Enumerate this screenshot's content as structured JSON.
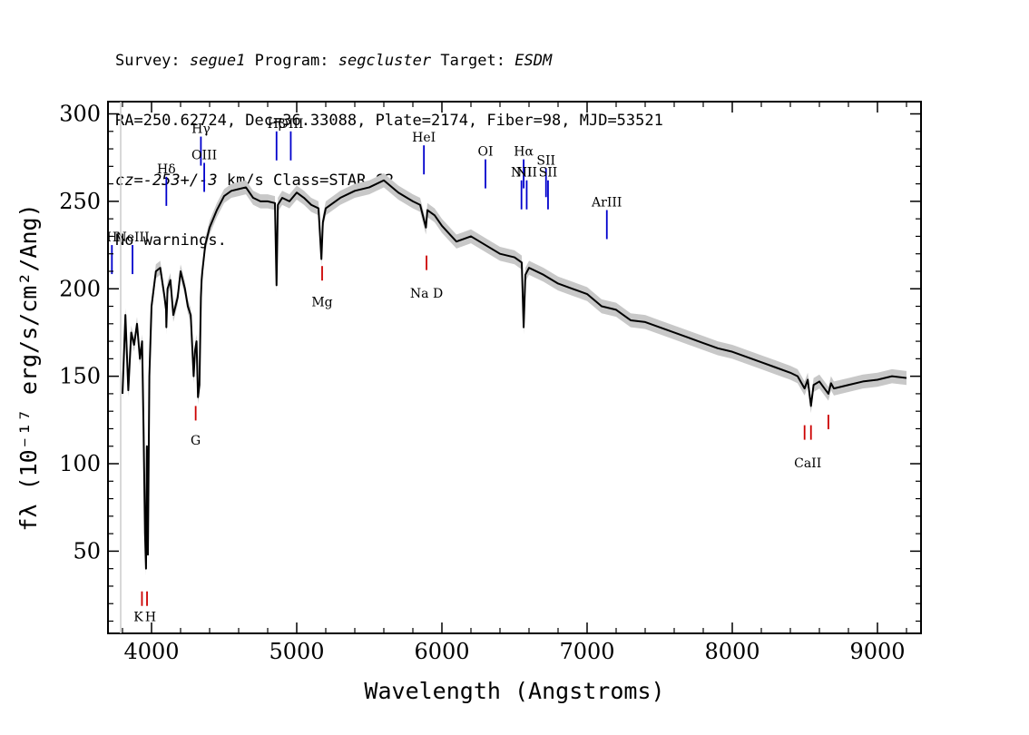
{
  "header": {
    "line1": {
      "survey_label": "Survey:",
      "survey": "segue1",
      "program_label": "Program:",
      "program": "segcluster",
      "target_label": "Target:",
      "target": "ESDM"
    },
    "line2": "RA=250.62724, Dec=36.33088, Plate=2174, Fiber=98, MJD=53521",
    "line3": {
      "cz": "cz=-253+/-3",
      "rest": " km/s Class=STAR G2"
    },
    "line4": "No warnings."
  },
  "chart_data": {
    "type": "line",
    "xlabel": "Wavelength (Angstroms)",
    "ylabel": "fλ (10⁻¹⁷ erg/s/cm²/Ang)",
    "xlim": [
      3700,
      9300
    ],
    "ylim": [
      3,
      307
    ],
    "xticks": [
      4000,
      5000,
      6000,
      7000,
      8000,
      9000
    ],
    "yticks": [
      50,
      100,
      150,
      200,
      250,
      300
    ],
    "series": [
      {
        "color": "#000000",
        "x": [
          3800,
          3820,
          3840,
          3860,
          3880,
          3900,
          3920,
          3935,
          3945,
          3955,
          3962,
          3968,
          3975,
          3985,
          4000,
          4030,
          4060,
          4090,
          4100,
          4102,
          4110,
          4130,
          4150,
          4180,
          4200,
          4230,
          4250,
          4270,
          4290,
          4300,
          4310,
          4320,
          4330,
          4340,
          4345,
          4350,
          4370,
          4400,
          4450,
          4500,
          4550,
          4600,
          4650,
          4700,
          4750,
          4800,
          4850,
          4861,
          4870,
          4900,
          4950,
          5000,
          5050,
          5100,
          5150,
          5170,
          5180,
          5200,
          5300,
          5400,
          5500,
          5600,
          5700,
          5800,
          5850,
          5890,
          5900,
          5950,
          6000,
          6100,
          6200,
          6300,
          6400,
          6500,
          6550,
          6563,
          6575,
          6600,
          6700,
          6800,
          6900,
          7000,
          7100,
          7200,
          7300,
          7400,
          7500,
          7600,
          7700,
          7800,
          7900,
          8000,
          8100,
          8200,
          8300,
          8400,
          8450,
          8498,
          8520,
          8542,
          8560,
          8600,
          8662,
          8680,
          8700,
          8800,
          8900,
          9000,
          9100,
          9200
        ],
        "values": [
          140,
          185,
          142,
          175,
          168,
          180,
          160,
          170,
          120,
          60,
          40,
          110,
          48,
          150,
          190,
          210,
          212,
          195,
          188,
          178,
          200,
          205,
          185,
          195,
          210,
          200,
          190,
          185,
          150,
          165,
          170,
          138,
          145,
          195,
          205,
          210,
          225,
          235,
          245,
          253,
          256,
          257,
          258,
          252,
          250,
          250,
          249,
          202,
          248,
          252,
          250,
          255,
          252,
          248,
          246,
          217,
          238,
          246,
          252,
          256,
          258,
          262,
          255,
          250,
          248,
          235,
          245,
          242,
          236,
          227,
          230,
          225,
          220,
          218,
          215,
          178,
          208,
          212,
          208,
          203,
          200,
          197,
          190,
          188,
          182,
          181,
          178,
          175,
          172,
          169,
          166,
          164,
          161,
          158,
          155,
          152,
          150,
          143,
          148,
          133,
          145,
          147,
          140,
          146,
          143,
          145,
          147,
          148,
          150,
          149
        ],
        "band": 4
      }
    ],
    "line_labels": {
      "emission": [
        {
          "label": "H",
          "x": 3727,
          "y_top": 225
        },
        {
          "label": "NeIII",
          "x": 3869,
          "y_top": 225
        },
        {
          "label": "Hδ",
          "x": 4102,
          "y_top": 264
        },
        {
          "label": "Hγ",
          "x": 4340,
          "y_top": 287
        },
        {
          "label": "OIII",
          "x": 4363,
          "y_top": 272
        },
        {
          "label": "Hβ",
          "x": 4861,
          "y_top": 290
        },
        {
          "label": "OIII",
          "x": 4959,
          "y_top": 290
        },
        {
          "label": "HeI",
          "x": 5876,
          "y_top": 282
        },
        {
          "label": "OI",
          "x": 6300,
          "y_top": 274
        },
        {
          "label": "NII",
          "x": 6548,
          "y_top": 262
        },
        {
          "label": "Hα",
          "x": 6563,
          "y_top": 274
        },
        {
          "label": "NII",
          "x": 6584,
          "y_top": 262
        },
        {
          "label": "SII",
          "x": 6717,
          "y_top": 269
        },
        {
          "label": "SII",
          "x": 6731,
          "y_top": 262
        },
        {
          "label": "ArIII",
          "x": 7136,
          "y_top": 245
        }
      ],
      "absorption": [
        {
          "label": "K",
          "x": 3934
        },
        {
          "label": "H",
          "x": 3969
        },
        {
          "label": "G",
          "x": 4304
        },
        {
          "label": "Mg",
          "x": 5175
        },
        {
          "label": "Na D",
          "x": 5894
        },
        {
          "label": "CaII",
          "x": 8498
        },
        {
          "label": "CaII",
          "x": 8542
        },
        {
          "label": "CaII",
          "x": 8662
        }
      ]
    }
  }
}
